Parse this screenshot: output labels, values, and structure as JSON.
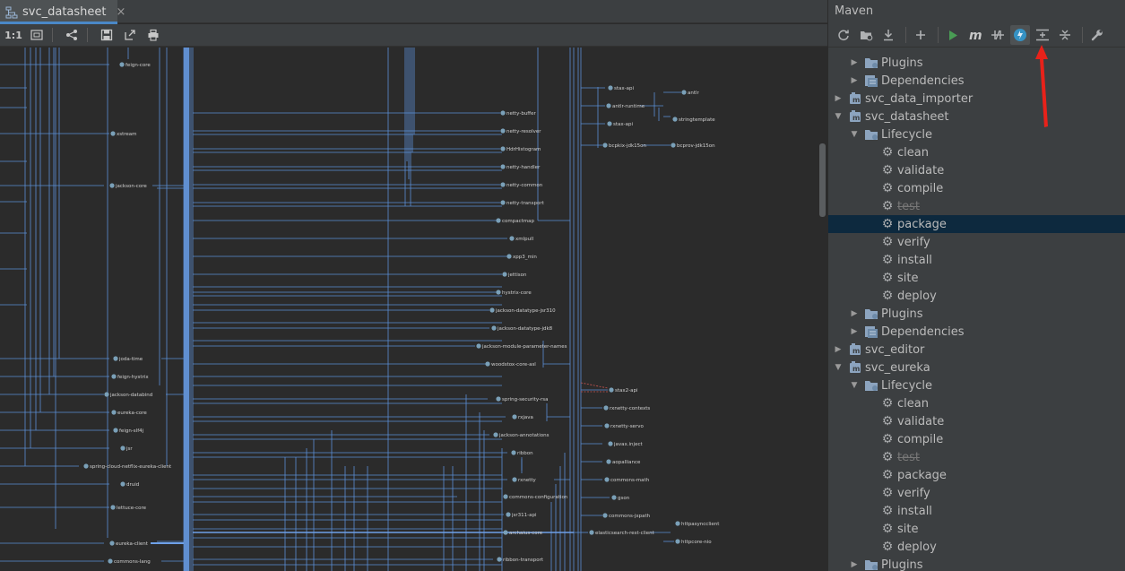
{
  "editor": {
    "tab_title": "svc_datasheet",
    "tab_close": "×",
    "toolbar": {
      "actual_size_label": "1:1"
    }
  },
  "diagram": {
    "nodes": [
      "feign-core",
      "xstream",
      "jackson-core",
      "joda-time",
      "feign-hystrix",
      "jackson-databind",
      "eureka-core",
      "feign-slf4j",
      "jsr",
      "spring-cloud-netflix-eureka-client",
      "druid",
      "lettuce-core",
      "eureka-client",
      "commons-lang",
      "netty-buffer",
      "netty-resolver",
      "HdrHistogram",
      "netty-handler",
      "netty-common",
      "netty-transport",
      "compactmap",
      "xmlpull",
      "xpp3_min",
      "jettison",
      "hystrix-core",
      "jackson-datatype-jsr310",
      "jackson-datatype-jdk8",
      "jackson-module-parameter-names",
      "woodstox-core-asl",
      "spring-security-rsa",
      "rxjava",
      "jackson-annotations",
      "ribbon",
      "rxnetty",
      "commons-configuration",
      "jsr311-api",
      "archaius-core",
      "ribbon-transport",
      "stax-api",
      "antlr-runtime",
      "stax-api",
      "bcpkix-jdk15on",
      "antlr",
      "stringtemplate",
      "bcprov-jdk15on",
      "stax2-api",
      "rxnetty-contexts",
      "rxnetty-servo",
      "javax.inject",
      "aopalliance",
      "commons-math",
      "gson",
      "commons-jxpath",
      "elasticsearch-rest-client",
      "httpasyncclient",
      "httpcore-nio"
    ]
  },
  "maven": {
    "title": "Maven",
    "tree": [
      {
        "label": "Plugins",
        "type": "folder",
        "level": 1,
        "expanded": false
      },
      {
        "label": "Dependencies",
        "type": "deps",
        "level": 1,
        "expanded": false
      },
      {
        "label": "svc_data_importer",
        "type": "module",
        "level": 0,
        "expanded": false
      },
      {
        "label": "svc_datasheet",
        "type": "module",
        "level": 0,
        "expanded": true
      },
      {
        "label": "Lifecycle",
        "type": "folder",
        "level": 1,
        "expanded": true
      },
      {
        "label": "clean",
        "type": "goal",
        "level": 2
      },
      {
        "label": "validate",
        "type": "goal",
        "level": 2
      },
      {
        "label": "compile",
        "type": "goal",
        "level": 2
      },
      {
        "label": "test",
        "type": "goal",
        "level": 2,
        "strike": true
      },
      {
        "label": "package",
        "type": "goal",
        "level": 2,
        "selected": true
      },
      {
        "label": "verify",
        "type": "goal",
        "level": 2
      },
      {
        "label": "install",
        "type": "goal",
        "level": 2
      },
      {
        "label": "site",
        "type": "goal",
        "level": 2
      },
      {
        "label": "deploy",
        "type": "goal",
        "level": 2
      },
      {
        "label": "Plugins",
        "type": "folder",
        "level": 1,
        "expanded": false
      },
      {
        "label": "Dependencies",
        "type": "deps",
        "level": 1,
        "expanded": false
      },
      {
        "label": "svc_editor",
        "type": "module",
        "level": 0,
        "expanded": false
      },
      {
        "label": "svc_eureka",
        "type": "module",
        "level": 0,
        "expanded": true
      },
      {
        "label": "Lifecycle",
        "type": "folder",
        "level": 1,
        "expanded": true
      },
      {
        "label": "clean",
        "type": "goal",
        "level": 2
      },
      {
        "label": "validate",
        "type": "goal",
        "level": 2
      },
      {
        "label": "compile",
        "type": "goal",
        "level": 2
      },
      {
        "label": "test",
        "type": "goal",
        "level": 2,
        "strike": true
      },
      {
        "label": "package",
        "type": "goal",
        "level": 2
      },
      {
        "label": "verify",
        "type": "goal",
        "level": 2
      },
      {
        "label": "install",
        "type": "goal",
        "level": 2
      },
      {
        "label": "site",
        "type": "goal",
        "level": 2
      },
      {
        "label": "deploy",
        "type": "goal",
        "level": 2
      },
      {
        "label": "Plugins",
        "type": "folder",
        "level": 1,
        "expanded": false
      }
    ]
  },
  "colors": {
    "edge": "#5b8fd6",
    "edge_red": "#c75450",
    "selection": "#0d293e",
    "accent_arrow": "#e8221a"
  }
}
